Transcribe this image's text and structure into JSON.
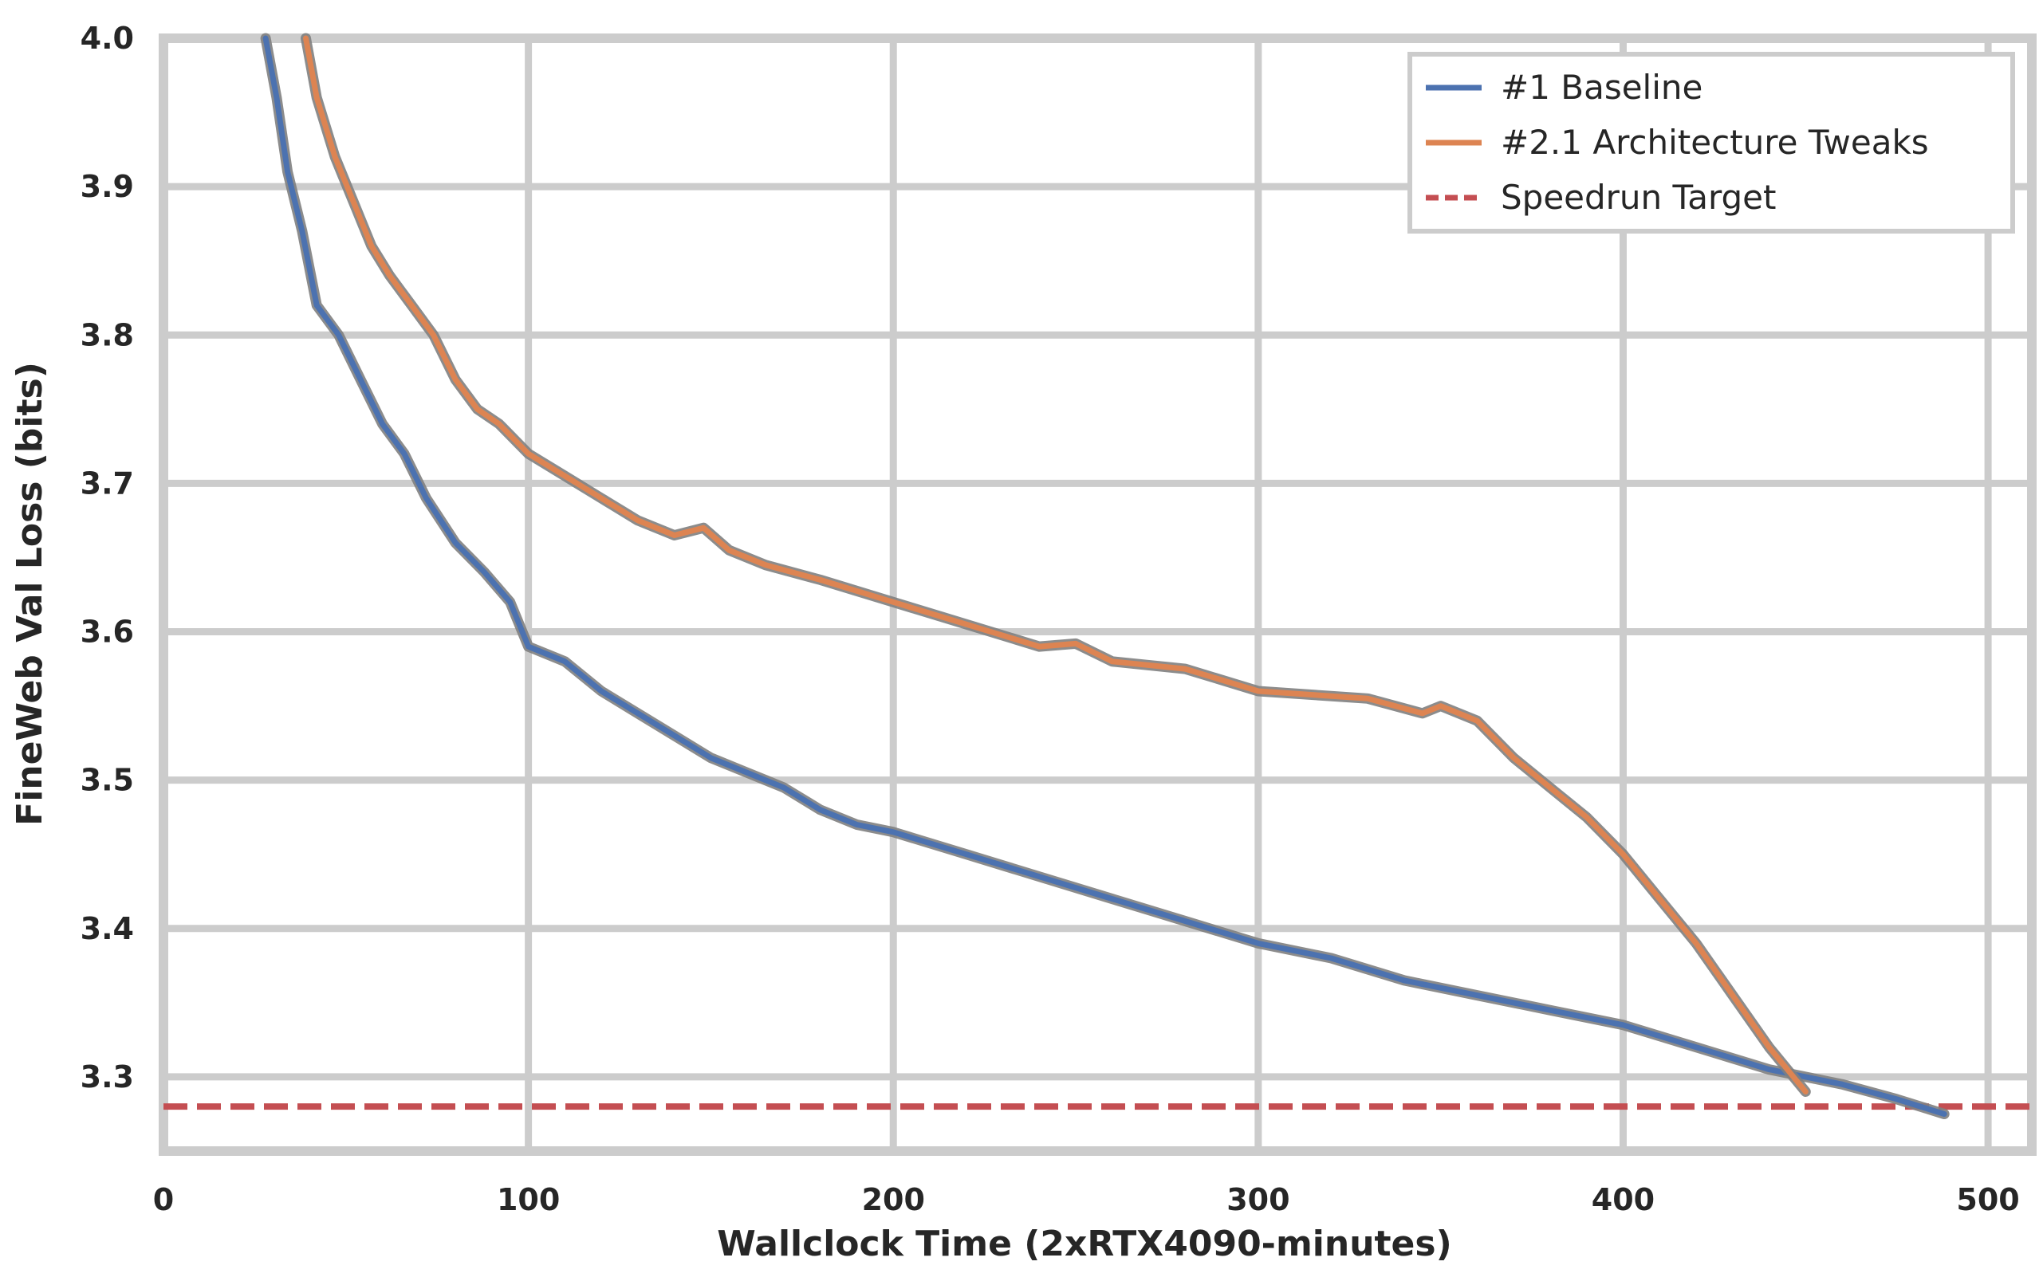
{
  "chart_data": {
    "type": "line",
    "xlabel": "Wallclock Time (2xRTX4090-minutes)",
    "ylabel": "FineWeb Val Loss (bits)",
    "xlim": [
      0,
      512
    ],
    "ylim": [
      3.25,
      4.0
    ],
    "x_ticks": [
      0,
      100,
      200,
      300,
      400,
      500
    ],
    "y_ticks": [
      3.3,
      3.4,
      3.5,
      3.6,
      3.7,
      3.8,
      3.9,
      4.0
    ],
    "x_tick_labels": [
      "0",
      "100",
      "200",
      "300",
      "400",
      "500"
    ],
    "y_tick_labels": [
      "3.3",
      "3.4",
      "3.5",
      "3.6",
      "3.7",
      "3.8",
      "3.9",
      "4.0"
    ],
    "grid": true,
    "legend_position": "top-right",
    "series": [
      {
        "name": "#1 Baseline",
        "color": "#4c72b0",
        "style": "solid",
        "points": [
          [
            28,
            4.0
          ],
          [
            31,
            3.96
          ],
          [
            34,
            3.91
          ],
          [
            38,
            3.87
          ],
          [
            42,
            3.82
          ],
          [
            48,
            3.8
          ],
          [
            54,
            3.77
          ],
          [
            60,
            3.74
          ],
          [
            66,
            3.72
          ],
          [
            72,
            3.69
          ],
          [
            80,
            3.66
          ],
          [
            88,
            3.64
          ],
          [
            95,
            3.62
          ],
          [
            100,
            3.59
          ],
          [
            110,
            3.58
          ],
          [
            120,
            3.56
          ],
          [
            130,
            3.545
          ],
          [
            140,
            3.53
          ],
          [
            150,
            3.515
          ],
          [
            160,
            3.505
          ],
          [
            165,
            3.5
          ],
          [
            170,
            3.495
          ],
          [
            180,
            3.48
          ],
          [
            190,
            3.47
          ],
          [
            200,
            3.465
          ],
          [
            220,
            3.45
          ],
          [
            240,
            3.435
          ],
          [
            260,
            3.42
          ],
          [
            280,
            3.405
          ],
          [
            300,
            3.39
          ],
          [
            320,
            3.38
          ],
          [
            340,
            3.365
          ],
          [
            360,
            3.355
          ],
          [
            380,
            3.345
          ],
          [
            400,
            3.335
          ],
          [
            420,
            3.32
          ],
          [
            440,
            3.305
          ],
          [
            460,
            3.295
          ],
          [
            475,
            3.285
          ],
          [
            488,
            3.275
          ]
        ]
      },
      {
        "name": "#2.1 Architecture Tweaks",
        "color": "#dd8452",
        "style": "solid",
        "points": [
          [
            39,
            4.0
          ],
          [
            42,
            3.96
          ],
          [
            47,
            3.92
          ],
          [
            52,
            3.89
          ],
          [
            57,
            3.86
          ],
          [
            62,
            3.84
          ],
          [
            68,
            3.82
          ],
          [
            74,
            3.8
          ],
          [
            80,
            3.77
          ],
          [
            86,
            3.75
          ],
          [
            92,
            3.74
          ],
          [
            100,
            3.72
          ],
          [
            110,
            3.705
          ],
          [
            120,
            3.69
          ],
          [
            130,
            3.675
          ],
          [
            140,
            3.665
          ],
          [
            148,
            3.67
          ],
          [
            155,
            3.655
          ],
          [
            165,
            3.645
          ],
          [
            180,
            3.635
          ],
          [
            200,
            3.62
          ],
          [
            220,
            3.605
          ],
          [
            240,
            3.59
          ],
          [
            250,
            3.592
          ],
          [
            260,
            3.58
          ],
          [
            280,
            3.575
          ],
          [
            300,
            3.56
          ],
          [
            330,
            3.555
          ],
          [
            345,
            3.545
          ],
          [
            350,
            3.55
          ],
          [
            360,
            3.54
          ],
          [
            370,
            3.515
          ],
          [
            380,
            3.495
          ],
          [
            390,
            3.475
          ],
          [
            400,
            3.45
          ],
          [
            410,
            3.42
          ],
          [
            420,
            3.39
          ],
          [
            430,
            3.355
          ],
          [
            440,
            3.32
          ],
          [
            450,
            3.29
          ]
        ]
      },
      {
        "name": "Speedrun Target",
        "color": "#c44e52",
        "style": "dashed",
        "y": 3.28
      }
    ]
  }
}
